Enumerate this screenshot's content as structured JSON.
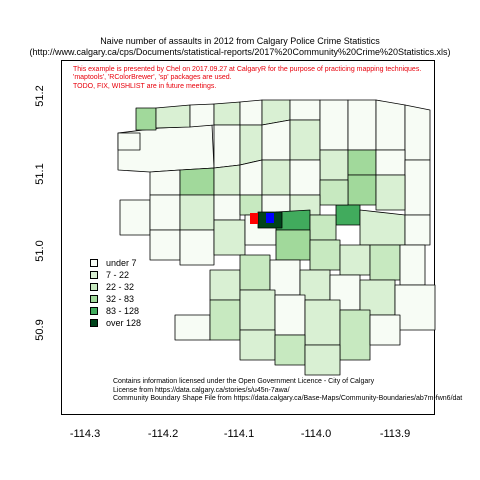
{
  "title": {
    "line1": "Naive number of assaults in 2012 from Calgary Police Crime Statistics",
    "line2": "(http://www.calgary.ca/cps/Documents/statistical-reports/2017%20Community%20Crime%20Statistics.xls)"
  },
  "notes": [
    "This example is presented by Chel on 2017.09.27 at CalgaryR for the purpose of practicing mapping techniques.",
    "'maptools', 'RColorBrewer', 'sp' packages are used.",
    "TODO, FIX, WISHLIST are in future meetings."
  ],
  "license": [
    "Contains information licensed under the Open Government Licence - City of Calgary",
    "License from  https://data.calgary.ca/stories/s/u45n-7awa/",
    "Community Boundary Shape File from  https://data.calgary.ca/Base-Maps/Community-Boundaries/ab7m-fwn6/dat"
  ],
  "legend": [
    {
      "label": "under 7",
      "color": "#f7fcf5"
    },
    {
      "label": "7 - 22",
      "color": "#d9f0d3"
    },
    {
      "label": "22 - 32",
      "color": "#c7e9c0"
    },
    {
      "label": "32 - 83",
      "color": "#a1d99b"
    },
    {
      "label": "83 - 128",
      "color": "#41ab5d"
    },
    {
      "label": "over 128",
      "color": "#00441b"
    }
  ],
  "axes": {
    "x_ticks": [
      "-114.3",
      "-114.2",
      "-114.1",
      "-114.0",
      "-113.9"
    ],
    "y_ticks": [
      "50.9",
      "51.0",
      "51.1",
      "51.2"
    ]
  },
  "markers": [
    {
      "name": "red-marker",
      "color": "#ff0000"
    },
    {
      "name": "blue-marker",
      "color": "#0000ff"
    }
  ]
}
